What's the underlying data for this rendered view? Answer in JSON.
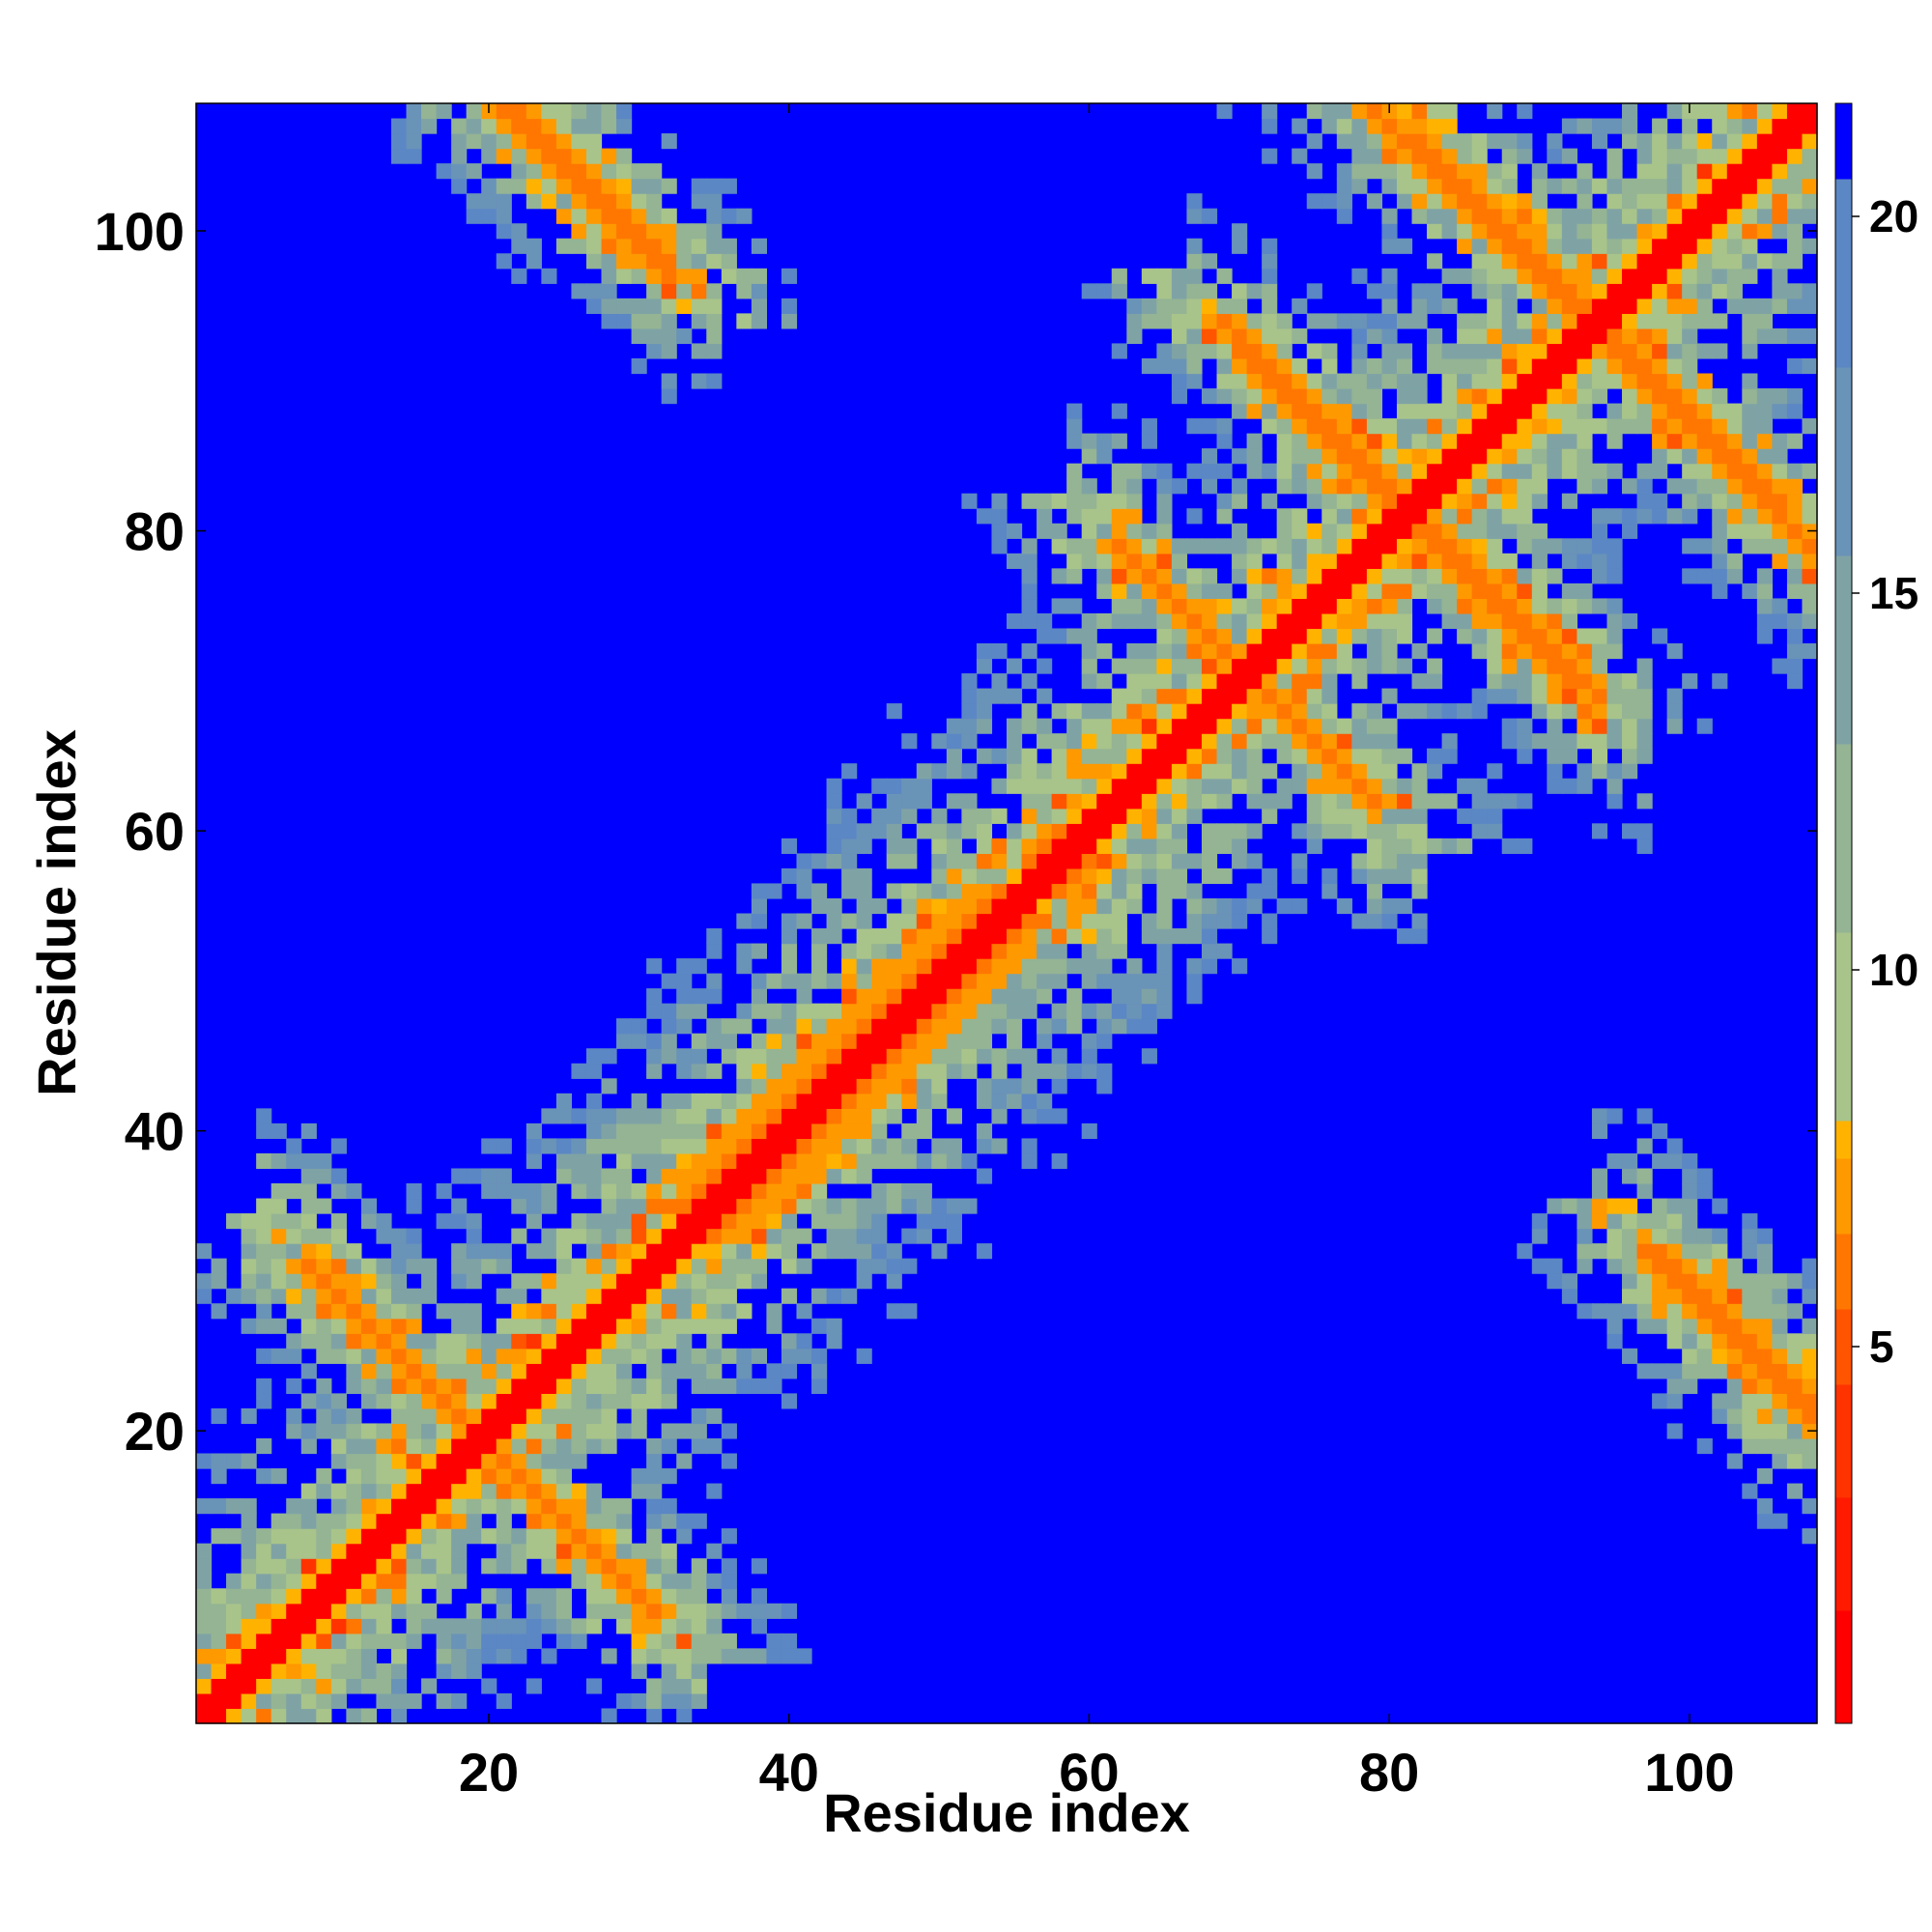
{
  "chart_data": {
    "type": "heatmap",
    "title": "",
    "xlabel": "Residue index",
    "ylabel": "Residue index",
    "n_residues": 108,
    "xlim": [
      0.5,
      108.5
    ],
    "ylim": [
      0.5,
      108.5
    ],
    "x_ticks": [
      20,
      40,
      60,
      80,
      100
    ],
    "y_ticks": [
      20,
      40,
      60,
      80,
      100
    ],
    "colorbar": {
      "ticks": [
        5,
        10,
        15,
        20
      ],
      "range": [
        0,
        21.5
      ],
      "levels": [
        {
          "min": 0,
          "max": 1.5,
          "color": "#ff0000"
        },
        {
          "min": 1.5,
          "max": 3.0,
          "color": "#ff1a00"
        },
        {
          "min": 3.0,
          "max": 4.5,
          "color": "#ff3300"
        },
        {
          "min": 4.5,
          "max": 5.5,
          "color": "#ff5500"
        },
        {
          "min": 5.5,
          "max": 6.5,
          "color": "#ff7700"
        },
        {
          "min": 6.5,
          "max": 7.5,
          "color": "#ff9900"
        },
        {
          "min": 7.5,
          "max": 8.0,
          "color": "#ffb300"
        },
        {
          "min": 8.0,
          "max": 10.5,
          "color": "#a8c48a"
        },
        {
          "min": 10.5,
          "max": 13.0,
          "color": "#94b494"
        },
        {
          "min": 13.0,
          "max": 15.5,
          "color": "#7fa3a5"
        },
        {
          "min": 15.5,
          "max": 18.0,
          "color": "#6a93b8"
        },
        {
          "min": 18.0,
          "max": 20.5,
          "color": "#5b87c4"
        },
        {
          "min": 20.5,
          "max": 21.5,
          "color": "#0000ff"
        }
      ]
    },
    "features": {
      "diagonal_halfwidth": 1.5,
      "helices": [
        {
          "start": 33,
          "end": 56,
          "width": 4
        },
        {
          "start": 56,
          "end": 60,
          "width": 3
        }
      ],
      "antiparallel_contacts": [
        {
          "i0": 8,
          "j0": 31,
          "length": 14
        },
        {
          "i0": 22,
          "j0": 108,
          "length": 10
        },
        {
          "i0": 17,
          "j0": 22,
          "length": 14
        },
        {
          "i0": 62,
          "j0": 79,
          "length": 14
        },
        {
          "i0": 69,
          "j0": 72,
          "length": 10
        },
        {
          "i0": 70,
          "j0": 92,
          "length": 12
        },
        {
          "i0": 82,
          "j0": 106,
          "length": 12
        },
        {
          "i0": 82,
          "j0": 81,
          "length": 12
        },
        {
          "i0": 94,
          "j0": 93,
          "length": 14
        },
        {
          "i0": 97,
          "j0": 32,
          "length": 14
        }
      ]
    }
  }
}
